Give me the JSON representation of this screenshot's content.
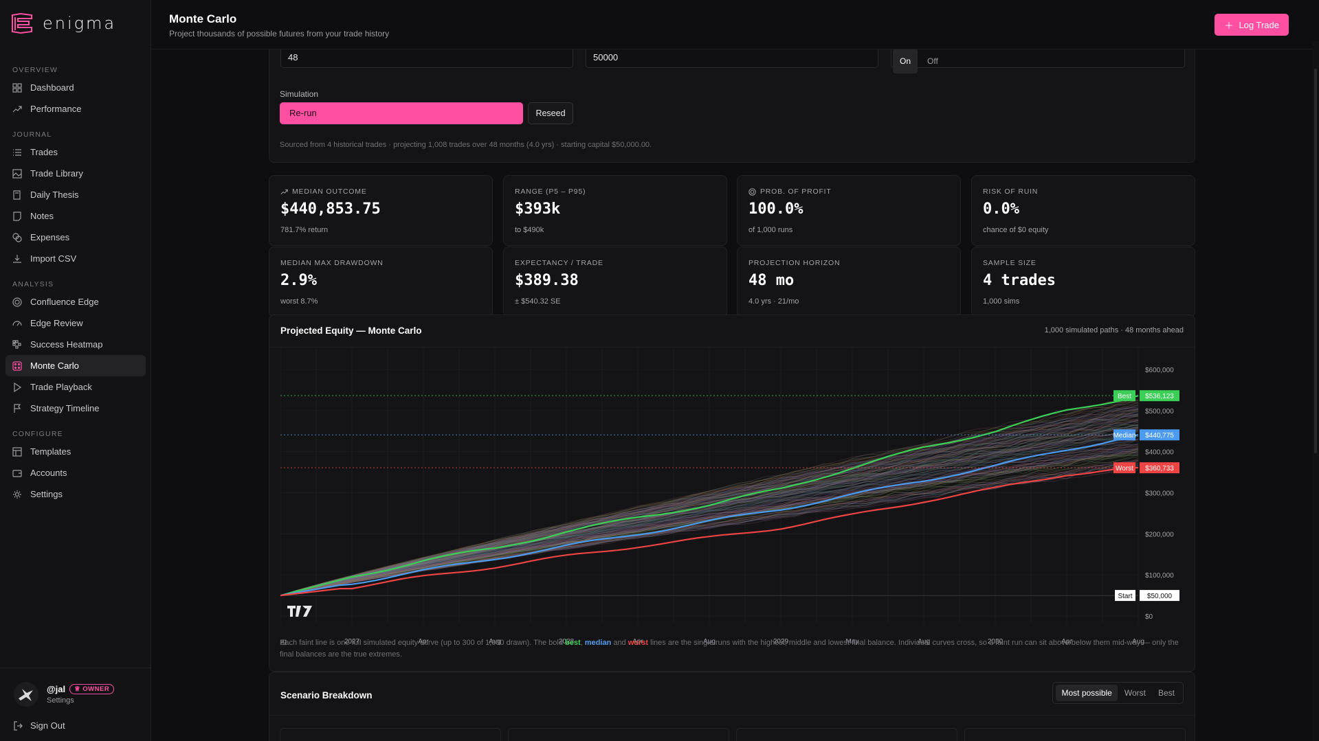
{
  "brand": {
    "name": "enigma",
    "accent": "#ff4fa3"
  },
  "sidebar": {
    "sections": [
      {
        "title": "OVERVIEW",
        "items": [
          {
            "label": "Dashboard",
            "icon": "grid-icon"
          },
          {
            "label": "Performance",
            "icon": "trend-icon"
          }
        ]
      },
      {
        "title": "JOURNAL",
        "items": [
          {
            "label": "Trades",
            "icon": "list-icon"
          },
          {
            "label": "Trade Library",
            "icon": "image-icon"
          },
          {
            "label": "Daily Thesis",
            "icon": "book-icon"
          },
          {
            "label": "Notes",
            "icon": "note-icon"
          },
          {
            "label": "Expenses",
            "icon": "coins-icon"
          },
          {
            "label": "Import CSV",
            "icon": "download-icon"
          }
        ]
      },
      {
        "title": "ANALYSIS",
        "items": [
          {
            "label": "Confluence Edge",
            "icon": "target-icon"
          },
          {
            "label": "Edge Review",
            "icon": "gauge-icon"
          },
          {
            "label": "Success Heatmap",
            "icon": "heatmap-icon"
          },
          {
            "label": "Monte Carlo",
            "icon": "dice-icon",
            "active": true
          },
          {
            "label": "Trade Playback",
            "icon": "play-icon"
          },
          {
            "label": "Strategy Timeline",
            "icon": "flag-icon"
          }
        ]
      },
      {
        "title": "CONFIGURE",
        "items": [
          {
            "label": "Templates",
            "icon": "layout-icon"
          },
          {
            "label": "Accounts",
            "icon": "wallet-icon"
          },
          {
            "label": "Settings",
            "icon": "gear-icon"
          }
        ]
      }
    ],
    "user": {
      "name": "@jal",
      "badge": "OWNER",
      "sub": "Settings"
    },
    "sign_out": "Sign Out"
  },
  "header": {
    "title": "Monte Carlo",
    "subtitle": "Project thousands of possible futures from your trade history",
    "log_trade": "Log Trade"
  },
  "config": {
    "months_value": "48",
    "capital_value": "50000",
    "toggle_on": "On",
    "toggle_off": "Off",
    "simulation_label": "Simulation",
    "rerun": "Re-run",
    "reseed": "Reseed",
    "source_note": "Sourced from 4 historical trades · projecting 1,008 trades over 48 months (4.0 yrs) · starting capital $50,000.00."
  },
  "stats": [
    {
      "label": "MEDIAN OUTCOME",
      "icon": "trend-icon",
      "value": "$440,853.75",
      "sub": "781.7% return"
    },
    {
      "label": "RANGE (P5 – P95)",
      "value": "$393k",
      "sub": "to $490k"
    },
    {
      "label": "PROB. OF PROFIT",
      "icon": "target-icon",
      "value": "100.0%",
      "sub": "of 1,000 runs"
    },
    {
      "label": "RISK OF RUIN",
      "value": "0.0%",
      "sub": "chance of $0 equity"
    },
    {
      "label": "MEDIAN MAX DRAWDOWN",
      "value": "2.9%",
      "sub": "worst 8.7%"
    },
    {
      "label": "EXPECTANCY / TRADE",
      "value": "$389.38",
      "sub": "± $540.32 SE"
    },
    {
      "label": "PROJECTION HORIZON",
      "value": "48 mo",
      "sub": "4.0 yrs · 21/mo"
    },
    {
      "label": "SAMPLE SIZE",
      "value": "4 trades",
      "sub": "1,000 sims"
    }
  ],
  "chart": {
    "title": "Projected Equity — Monte Carlo",
    "meta": "1,000 simulated paths · 48 months ahead",
    "note_parts": [
      "Each faint line is one full simulated equity curve (up to 300 of 1,000 drawn). The bold ",
      "best",
      ", ",
      "median",
      " and ",
      "worst",
      " lines are the single runs with the highest, middle and lowest final balance. Individual curves cross, so a faint run can sit above/below them mid-way — only the final balances are the true extremes."
    ],
    "colors": {
      "best": "#3ccf57",
      "median": "#4d9bf0",
      "worst": "#ef4444",
      "start": "#ffffff"
    }
  },
  "chart_data": {
    "type": "line",
    "x_labels": [
      "Aug",
      "2027",
      "Apr",
      "Aug",
      "2028",
      "Apr",
      "Aug",
      "2029",
      "May",
      "Aug",
      "2030",
      "Apr",
      "Aug"
    ],
    "x_range_months": [
      0,
      48
    ],
    "y_ticks": [
      "$0",
      "$100,000",
      "$200,000",
      "$300,000",
      "$400,000",
      "$500,000",
      "$600,000"
    ],
    "ylim": [
      0,
      600000
    ],
    "series": [
      {
        "name": "Best",
        "final": 536123,
        "values": [
          50000,
          95000,
          135000,
          165000,
          205000,
          240000,
          270000,
          310000,
          360000,
          410000,
          450000,
          500000,
          536123
        ]
      },
      {
        "name": "Median",
        "final": 440775,
        "values": [
          50000,
          80000,
          110000,
          140000,
          170000,
          200000,
          230000,
          260000,
          295000,
          330000,
          365000,
          405000,
          440775
        ]
      },
      {
        "name": "Worst",
        "final": 360733,
        "values": [
          50000,
          70000,
          95000,
          120000,
          145000,
          170000,
          190000,
          215000,
          245000,
          280000,
          310000,
          345000,
          360733
        ]
      }
    ],
    "reference_lines": [
      {
        "name": "Best",
        "value": 536123,
        "label": "$536,123"
      },
      {
        "name": "Median",
        "value": 440775,
        "label": "$440,775"
      },
      {
        "name": "Worst",
        "value": 360733,
        "label": "$360,733"
      },
      {
        "name": "Start",
        "value": 50000,
        "label": "$50,000"
      }
    ],
    "grid": true
  },
  "scenario": {
    "title": "Scenario Breakdown",
    "tabs": [
      "Most possible",
      "Worst",
      "Best"
    ],
    "active_tab": "Most possible"
  }
}
